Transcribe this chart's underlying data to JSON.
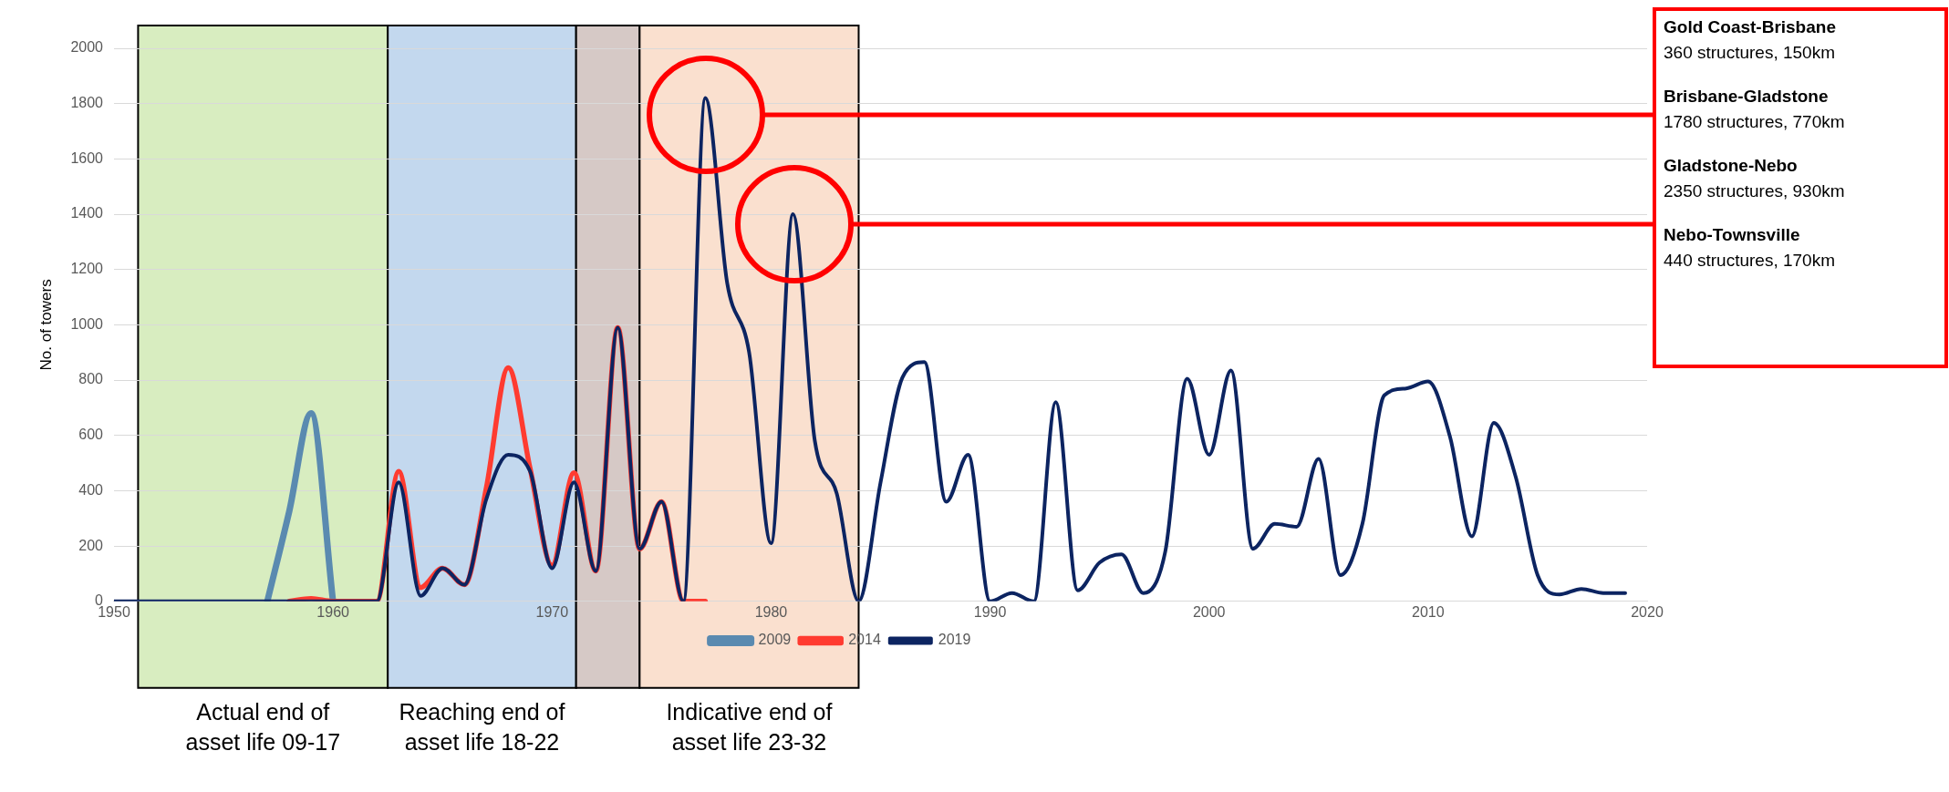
{
  "chart_data": {
    "type": "line",
    "ylabel": "No. of towers",
    "x": [
      1950,
      1951,
      1952,
      1953,
      1954,
      1955,
      1956,
      1957,
      1958,
      1959,
      1960,
      1961,
      1962,
      1963,
      1964,
      1965,
      1966,
      1967,
      1968,
      1969,
      1970,
      1971,
      1972,
      1973,
      1974,
      1975,
      1976,
      1977,
      1978,
      1979,
      1980,
      1981,
      1982,
      1983,
      1984,
      1985,
      1986,
      1987,
      1988,
      1989,
      1990,
      1991,
      1992,
      1993,
      1994,
      1995,
      1996,
      1997,
      1998,
      1999,
      2000,
      2001,
      2002,
      2003,
      2004,
      2005,
      2006,
      2007,
      2008,
      2009,
      2010,
      2011,
      2012,
      2013,
      2014,
      2015,
      2016,
      2017,
      2018,
      2019
    ],
    "series": [
      {
        "name": "2009",
        "color": "#5a8ab0",
        "values": [
          null,
          null,
          null,
          null,
          null,
          null,
          null,
          0,
          325,
          680,
          0,
          null,
          null,
          null,
          null,
          null,
          null,
          null,
          null,
          null,
          null,
          null,
          null,
          null,
          null,
          null,
          null,
          null,
          null,
          null,
          null,
          null,
          null,
          null,
          null,
          null,
          null,
          null,
          null,
          null,
          null,
          null,
          null,
          null,
          null,
          null,
          null,
          null,
          null,
          null,
          null,
          null,
          null,
          null,
          null,
          null,
          null,
          null,
          null,
          null,
          null,
          null,
          null,
          null,
          null,
          null,
          null,
          null,
          null,
          null
        ]
      },
      {
        "name": "2014",
        "color": "#ff3b30",
        "values": [
          null,
          null,
          null,
          null,
          null,
          null,
          null,
          null,
          0,
          10,
          0,
          0,
          0,
          470,
          50,
          120,
          60,
          410,
          845,
          480,
          130,
          465,
          110,
          990,
          190,
          360,
          0,
          0,
          null,
          null,
          null,
          null,
          null,
          null,
          null,
          null,
          null,
          null,
          null,
          null,
          null,
          null,
          null,
          null,
          null,
          null,
          null,
          null,
          null,
          null,
          null,
          null,
          null,
          null,
          null,
          null,
          null,
          null,
          null,
          null,
          null,
          null,
          null,
          null,
          null,
          null,
          null,
          null,
          null,
          null
        ]
      },
      {
        "name": "2019",
        "color": "#0c2461",
        "values": [
          0,
          0,
          0,
          0,
          0,
          0,
          0,
          0,
          0,
          0,
          0,
          0,
          0,
          430,
          20,
          120,
          60,
          370,
          530,
          470,
          120,
          430,
          110,
          990,
          190,
          360,
          0,
          1820,
          1150,
          900,
          210,
          1400,
          580,
          390,
          0,
          430,
          810,
          865,
          360,
          530,
          0,
          30,
          0,
          720,
          40,
          140,
          170,
          30,
          180,
          805,
          530,
          835,
          190,
          280,
          270,
          515,
          95,
          280,
          745,
          770,
          795,
          595,
          235,
          645,
          450,
          95,
          25,
          45,
          30,
          30
        ]
      }
    ],
    "xlim": [
      1950,
      2020
    ],
    "xticks": [
      1950,
      1960,
      1970,
      1980,
      1990,
      2000,
      2010,
      2020
    ],
    "ylim": [
      0,
      2000
    ],
    "yticks": [
      0,
      200,
      400,
      600,
      800,
      1000,
      1200,
      1400,
      1600,
      1800,
      2000
    ],
    "grid": "y",
    "legend": "bottom",
    "marker": "none",
    "bands": [
      {
        "axis": "x",
        "from": 1951.1,
        "to": 1962.5,
        "label": "Actual end of\nasset life 09-17",
        "color": "#d8edc0"
      },
      {
        "axis": "x",
        "from": 1962.5,
        "to": 1971.1,
        "label": "Reaching end of\nasset life 18-22",
        "color": "#c3d8ee"
      },
      {
        "axis": "x",
        "from": 1971.1,
        "to": 1974.0,
        "color": "#d6c9c6"
      },
      {
        "axis": "x",
        "from": 1974.0,
        "to": 1984.0,
        "label": "Indicative end of\nasset life 23-32",
        "color": "#fae0cf"
      }
    ],
    "annotations": [
      "Gold Coast-Brisbane\n360 structures, 150km",
      "Brisbane-Gladstone\n1780 structures, 770km",
      "Gladstone-Nebo\n2350 structures, 930km",
      "Nebo-Townsville\n440 structures, 170km"
    ]
  }
}
